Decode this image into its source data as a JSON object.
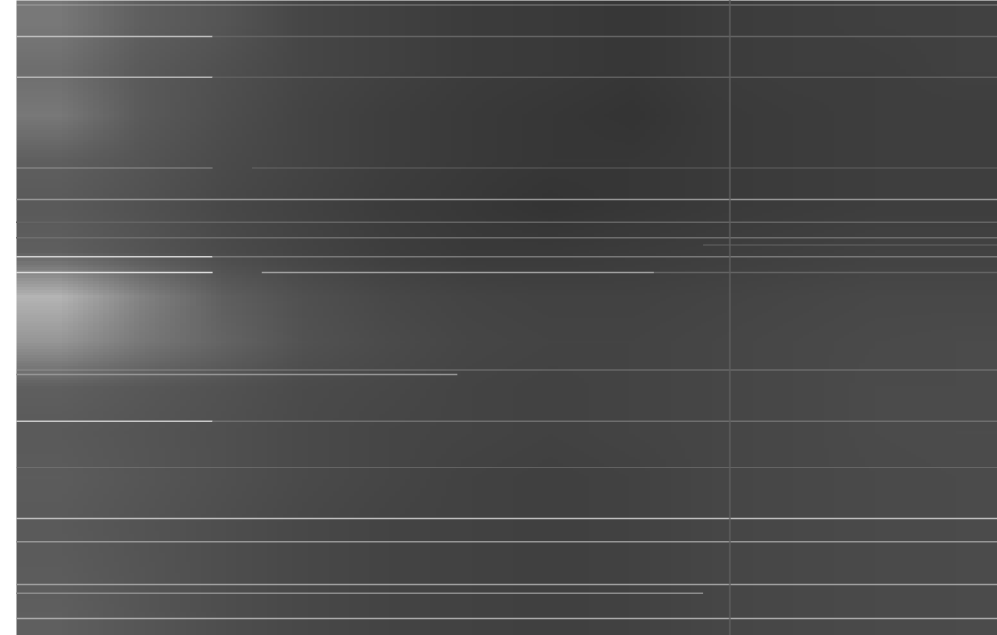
{
  "chart_data": {
    "type": "heatmap",
    "tick_labels": false,
    "xlim": [
      0,
      100
    ],
    "ylim": [
      0,
      100
    ],
    "cell_range": [
      0,
      255
    ],
    "cells": [
      [
        120,
        95,
        85,
        70,
        65,
        60,
        58,
        55,
        60,
        62,
        64,
        65
      ],
      [
        110,
        90,
        80,
        70,
        65,
        60,
        58,
        55,
        60,
        62,
        62,
        65
      ],
      [
        120,
        90,
        78,
        68,
        62,
        58,
        55,
        52,
        58,
        60,
        62,
        62
      ],
      [
        95,
        85,
        75,
        68,
        62,
        58,
        55,
        55,
        58,
        60,
        62,
        62
      ],
      [
        90,
        82,
        72,
        66,
        60,
        56,
        52,
        55,
        58,
        60,
        62,
        62
      ],
      [
        95,
        85,
        75,
        68,
        62,
        58,
        58,
        60,
        62,
        64,
        66,
        66
      ],
      [
        180,
        130,
        95,
        80,
        72,
        68,
        66,
        66,
        68,
        70,
        72,
        72
      ],
      [
        150,
        120,
        100,
        82,
        75,
        70,
        68,
        68,
        70,
        72,
        74,
        75
      ],
      [
        95,
        88,
        82,
        75,
        72,
        68,
        66,
        68,
        70,
        72,
        75,
        75
      ],
      [
        90,
        85,
        80,
        74,
        70,
        68,
        66,
        68,
        70,
        72,
        75,
        76
      ],
      [
        92,
        86,
        80,
        74,
        70,
        66,
        64,
        66,
        70,
        72,
        74,
        75
      ],
      [
        90,
        84,
        78,
        72,
        68,
        66,
        64,
        66,
        70,
        72,
        74,
        75
      ],
      [
        92,
        85,
        78,
        72,
        68,
        66,
        64,
        66,
        70,
        72,
        74,
        75
      ],
      [
        95,
        86,
        78,
        72,
        68,
        66,
        64,
        66,
        70,
        72,
        74,
        75
      ]
    ],
    "lines": [
      {
        "y": 0.7,
        "x1": 0,
        "x2": 100,
        "level": 200
      },
      {
        "y": 5.7,
        "x1": 0,
        "x2": 20,
        "level": 190
      },
      {
        "y": 5.7,
        "x1": 20,
        "x2": 100,
        "level": 100
      },
      {
        "y": 12.1,
        "x1": 0,
        "x2": 20,
        "level": 180
      },
      {
        "y": 12.1,
        "x1": 20,
        "x2": 100,
        "level": 95
      },
      {
        "y": 26.4,
        "x1": 0,
        "x2": 20,
        "level": 200
      },
      {
        "y": 26.4,
        "x1": 24,
        "x2": 100,
        "level": 130
      },
      {
        "y": 31.4,
        "x1": 0,
        "x2": 100,
        "level": 150
      },
      {
        "y": 34.9,
        "x1": 0,
        "x2": 100,
        "level": 100
      },
      {
        "y": 37.4,
        "x1": 0,
        "x2": 100,
        "level": 110
      },
      {
        "y": 38.5,
        "x1": 70,
        "x2": 100,
        "level": 140
      },
      {
        "y": 40.4,
        "x1": 0,
        "x2": 20,
        "level": 210
      },
      {
        "y": 40.4,
        "x1": 20,
        "x2": 100,
        "level": 120
      },
      {
        "y": 42.8,
        "x1": 0,
        "x2": 20,
        "level": 220
      },
      {
        "y": 42.8,
        "x1": 25,
        "x2": 65,
        "level": 160
      },
      {
        "y": 42.8,
        "x1": 65,
        "x2": 100,
        "level": 100
      },
      {
        "y": 58.2,
        "x1": 0,
        "x2": 100,
        "level": 170
      },
      {
        "y": 58.9,
        "x1": 0,
        "x2": 45,
        "level": 150
      },
      {
        "y": 66.3,
        "x1": 0,
        "x2": 20,
        "level": 200
      },
      {
        "y": 66.3,
        "x1": 20,
        "x2": 100,
        "level": 110
      },
      {
        "y": 73.5,
        "x1": 0,
        "x2": 100,
        "level": 130
      },
      {
        "y": 81.6,
        "x1": 0,
        "x2": 100,
        "level": 190
      },
      {
        "y": 85.2,
        "x1": 0,
        "x2": 100,
        "level": 150
      },
      {
        "y": 92.0,
        "x1": 0,
        "x2": 100,
        "level": 160
      },
      {
        "y": 93.4,
        "x1": 0,
        "x2": 70,
        "level": 140
      },
      {
        "y": 97.3,
        "x1": 0,
        "x2": 100,
        "level": 170
      }
    ],
    "vertical_lines": [
      {
        "x": 72.7,
        "y1": 0,
        "y2": 100,
        "level": 95
      }
    ]
  }
}
